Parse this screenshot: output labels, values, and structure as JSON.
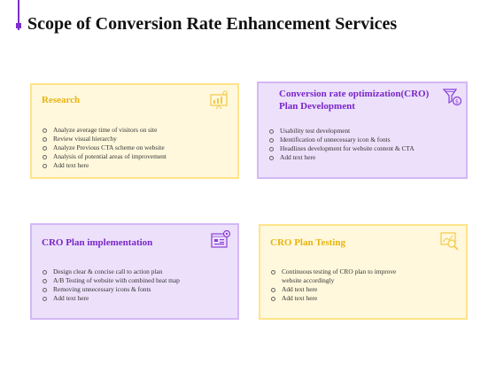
{
  "page": {
    "title": "Scope of Conversion Rate Enhancement Services"
  },
  "colors": {
    "accent": "#7b2fd0",
    "gold": "#e8b40f",
    "violet": "#7a26c8",
    "yellow_card": "#fff8dc",
    "purple_card": "#ece0fb"
  },
  "cards": [
    {
      "title": "Research",
      "icon": "chart-presentation-icon",
      "items": [
        "Analyze average time of visitors on site",
        "Review visual hierarchy",
        "Analyze Previous CTA scheme on website",
        "Analysis of potential areas of improvement",
        "Add text here"
      ]
    },
    {
      "title_line1": "Conversion rate optimization(CRO)",
      "title_line2": "Plan Development",
      "icon": "funnel-dollar-icon",
      "items": [
        "Usability test development",
        "Identification of unnecessary icon & fonts",
        "Headlines development for website content & CTA",
        "Add text here"
      ]
    },
    {
      "title": "CRO Plan implementation",
      "icon": "gear-dashboard-icon",
      "items": [
        "Design clear & concise call to action plan",
        "A/B Testing of website with combined heat map",
        "Removing unnecessary icons & fonts",
        "Add text here"
      ]
    },
    {
      "title": "CRO Plan Testing",
      "icon": "magnifier-chart-icon",
      "items": [
        "Continuous testing of CRO plan to improve",
        "website accordingly",
        "Add text here",
        "Add text here"
      ]
    }
  ]
}
